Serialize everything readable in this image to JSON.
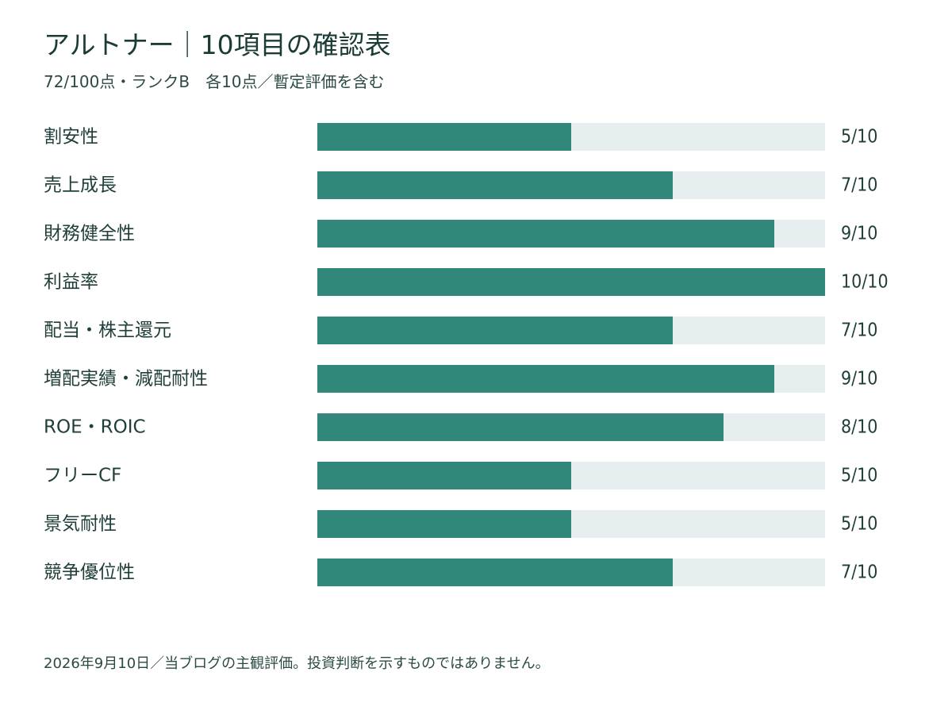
{
  "header": {
    "title": "アルトナー｜10項目の確認表",
    "subtitle": "72/100点・ランクB　各10点／暫定評価を含む"
  },
  "footer": {
    "note": "2026年9月10日／当ブログの主観評価。投資判断を示すものではありません。"
  },
  "colors": {
    "bar_fill": "#31877a",
    "bar_track": "#e6eef0",
    "text": "#1f3d39"
  },
  "chart_data": {
    "type": "bar",
    "orientation": "horizontal",
    "categories": [
      "割安性",
      "売上成長",
      "財務健全性",
      "利益率",
      "配当・株主還元",
      "増配実績・減配耐性",
      "ROE・ROIC",
      "フリーCF",
      "景気耐性",
      "競争優位性"
    ],
    "values": [
      5,
      7,
      9,
      10,
      7,
      9,
      8,
      5,
      5,
      7
    ],
    "value_labels": [
      "5/10",
      "7/10",
      "9/10",
      "10/10",
      "7/10",
      "9/10",
      "8/10",
      "5/10",
      "5/10",
      "7/10"
    ],
    "xlim": [
      0,
      10
    ],
    "grid": false,
    "legend": "none"
  }
}
